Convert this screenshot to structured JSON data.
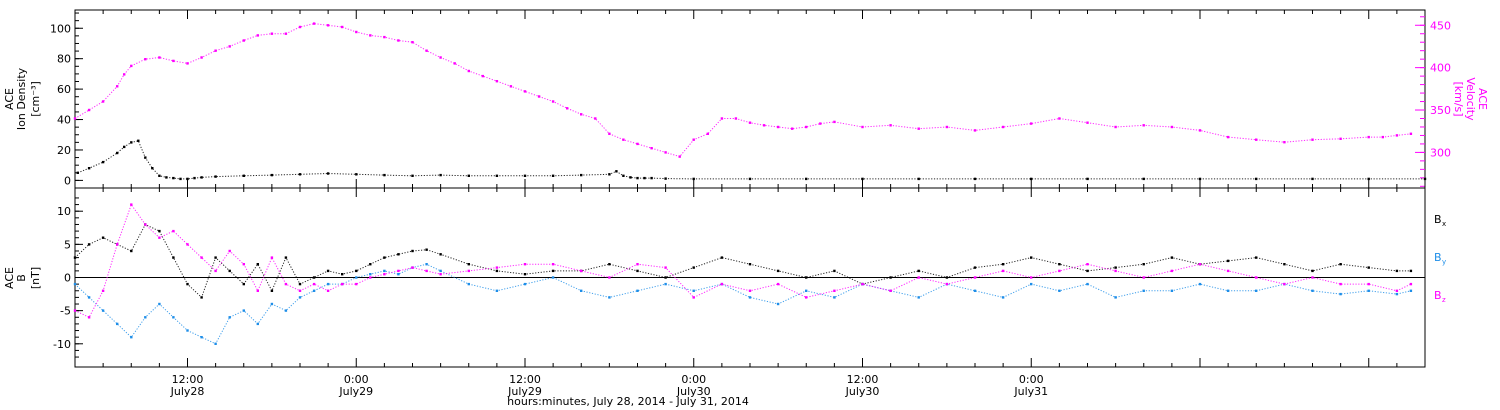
{
  "chart_data": [
    {
      "type": "scatter",
      "panel": "top",
      "ylabel_left": [
        "ACE",
        "Ion Density",
        "[cm⁻³]"
      ],
      "ylabel_right": [
        "ACE",
        "Velocity",
        "[km/s]"
      ],
      "xlim_hours": [
        -20,
        76
      ],
      "ylim_left": [
        -5,
        112
      ],
      "ylim_right": [
        258,
        468
      ],
      "left_ticks": [
        0,
        20,
        40,
        60,
        80,
        100
      ],
      "right_ticks": [
        300,
        350,
        400,
        450
      ],
      "left_color": "#000000",
      "right_color": "#ff00ff",
      "series": [
        {
          "axis": "left",
          "color": "#000000",
          "x": [
            -19.8,
            -19,
            -18,
            -17,
            -16.5,
            -16,
            -15.5,
            -15,
            -14.5,
            -14,
            -13.5,
            -13,
            -12.5,
            -12,
            -11.5,
            -11,
            -10,
            -8,
            -6,
            -4,
            -2,
            0,
            2,
            4,
            6,
            8,
            10,
            12,
            14,
            16,
            18,
            18.5,
            19,
            19.5,
            20,
            20.5,
            21,
            22,
            24,
            28,
            32,
            36,
            40,
            44,
            48,
            52,
            56,
            60,
            64,
            68,
            72,
            76
          ],
          "y": [
            5,
            8,
            12,
            18,
            22,
            25,
            26,
            15,
            8,
            3,
            2,
            1.5,
            1,
            1,
            1.5,
            2,
            2.5,
            3,
            3.5,
            4,
            4.5,
            4,
            3.5,
            3,
            3.5,
            3,
            3,
            3,
            3,
            3.5,
            4,
            6,
            3,
            2,
            1.5,
            1.5,
            1.5,
            1.2,
            1,
            1,
            1,
            1,
            1,
            1,
            1,
            1,
            1,
            1,
            1,
            1,
            1,
            1
          ]
        },
        {
          "axis": "right",
          "color": "#ff00ff",
          "x": [
            -20,
            -19,
            -18,
            -17,
            -16.5,
            -16,
            -15,
            -14,
            -13,
            -12,
            -11,
            -10,
            -9,
            -8,
            -7,
            -6,
            -5,
            -4,
            -3,
            -2,
            -1,
            0,
            1,
            2,
            3,
            4,
            5,
            6,
            7,
            8,
            9,
            10,
            11,
            12,
            13,
            14,
            15,
            16,
            17,
            18,
            19,
            20,
            21,
            22,
            23,
            24,
            25,
            26,
            27,
            28,
            29,
            30,
            31,
            32,
            33,
            34,
            36,
            38,
            40,
            42,
            44,
            46,
            48,
            50,
            52,
            54,
            56,
            58,
            60,
            62,
            64,
            66,
            68,
            70,
            72,
            73,
            74,
            75
          ],
          "y": [
            340,
            350,
            360,
            378,
            392,
            402,
            410,
            412,
            408,
            405,
            412,
            420,
            425,
            432,
            438,
            440,
            440,
            448,
            452,
            450,
            448,
            442,
            438,
            436,
            432,
            430,
            420,
            412,
            405,
            396,
            390,
            384,
            378,
            372,
            366,
            360,
            352,
            345,
            340,
            322,
            315,
            310,
            305,
            300,
            295,
            315,
            322,
            340,
            340,
            335,
            332,
            330,
            328,
            330,
            334,
            336,
            330,
            332,
            328,
            330,
            326,
            330,
            334,
            340,
            335,
            330,
            332,
            330,
            326,
            318,
            315,
            312,
            315,
            316,
            318,
            318,
            320,
            322
          ]
        }
      ]
    },
    {
      "type": "scatter",
      "panel": "bottom",
      "ylabel": [
        "ACE",
        "B",
        "[nT]"
      ],
      "xlim_hours": [
        -20,
        76
      ],
      "ylim": [
        -13.5,
        13.5
      ],
      "ticks": [
        -10,
        -5,
        0,
        5,
        10
      ],
      "zero_line": true,
      "legend_placement": "right",
      "series": [
        {
          "name": "Bx",
          "color": "#000000",
          "x": [
            -20,
            -19,
            -18,
            -17,
            -16,
            -15,
            -14,
            -13,
            -12,
            -11,
            -10,
            -9,
            -8,
            -7,
            -6,
            -5,
            -4,
            -3,
            -2,
            -1,
            0,
            1,
            2,
            3,
            4,
            5,
            6,
            8,
            10,
            12,
            14,
            16,
            18,
            20,
            22,
            24,
            26,
            28,
            30,
            32,
            34,
            36,
            38,
            40,
            42,
            44,
            46,
            48,
            50,
            52,
            54,
            56,
            58,
            60,
            62,
            64,
            66,
            68,
            70,
            72,
            74,
            75
          ],
          "y": [
            3,
            5,
            6,
            5,
            4,
            8,
            7,
            3,
            -1,
            -3,
            3,
            1,
            -1,
            2,
            -2,
            3,
            -1,
            0,
            1,
            0.5,
            1,
            2,
            3,
            3.5,
            4,
            4.2,
            3.5,
            2,
            1,
            0.5,
            1,
            1,
            2,
            1,
            0,
            1.5,
            3,
            2,
            1,
            0,
            1,
            -1,
            0,
            1,
            0,
            1.5,
            2,
            3,
            2,
            1,
            1.5,
            2,
            3,
            2,
            2.5,
            3,
            2,
            1,
            2,
            1.5,
            1,
            1
          ]
        },
        {
          "name": "By",
          "color": "#1e8ee8",
          "x": [
            -20,
            -19,
            -18,
            -17,
            -16,
            -15,
            -14,
            -13,
            -12,
            -11,
            -10,
            -9,
            -8,
            -7,
            -6,
            -5,
            -4,
            -3,
            -2,
            -1,
            0,
            1,
            2,
            3,
            4,
            5,
            6,
            8,
            10,
            12,
            14,
            16,
            18,
            20,
            22,
            24,
            26,
            28,
            30,
            32,
            34,
            36,
            38,
            40,
            42,
            44,
            46,
            48,
            50,
            52,
            54,
            56,
            58,
            60,
            62,
            64,
            66,
            68,
            70,
            72,
            74,
            75
          ],
          "y": [
            -1,
            -3,
            -5,
            -7,
            -9,
            -6,
            -4,
            -6,
            -8,
            -9,
            -10,
            -6,
            -5,
            -7,
            -4,
            -5,
            -3,
            -2,
            -1,
            -1,
            0,
            0.5,
            1,
            0.5,
            1.5,
            2,
            1,
            -1,
            -2,
            -1,
            0,
            -2,
            -3,
            -2,
            -1,
            -2,
            -1,
            -3,
            -4,
            -2,
            -3,
            -1,
            -2,
            -3,
            -1,
            -2,
            -3,
            -1,
            -2,
            -1,
            -3,
            -2,
            -2,
            -1,
            -2,
            -2,
            -1,
            -2,
            -2.5,
            -2,
            -2.5,
            -2
          ]
        },
        {
          "name": "Bz",
          "color": "#ff00ff",
          "x": [
            -20,
            -19,
            -18,
            -17,
            -16,
            -15,
            -14,
            -13,
            -12,
            -11,
            -10,
            -9,
            -8,
            -7,
            -6,
            -5,
            -4,
            -3,
            -2,
            -1,
            0,
            1,
            2,
            3,
            4,
            5,
            6,
            8,
            10,
            12,
            14,
            16,
            18,
            20,
            22,
            24,
            26,
            28,
            30,
            32,
            34,
            36,
            38,
            40,
            42,
            44,
            46,
            48,
            50,
            52,
            54,
            56,
            58,
            60,
            62,
            64,
            66,
            68,
            70,
            72,
            74,
            75
          ],
          "y": [
            -5,
            -6,
            -2,
            5,
            11,
            8,
            6,
            7,
            5,
            3,
            1,
            4,
            2,
            -2,
            3,
            -1,
            -2,
            -1,
            -2,
            -1,
            -1,
            0,
            0.5,
            1,
            1.5,
            1,
            0.5,
            1,
            1.5,
            2,
            2,
            1,
            0,
            2,
            1.5,
            -3,
            -1,
            -2,
            -1,
            -3,
            -2,
            -1,
            -2,
            0,
            -1,
            0,
            1,
            0,
            1,
            2,
            1,
            0,
            1,
            2,
            1,
            0,
            -1,
            0,
            -1,
            -1,
            -2,
            -1
          ]
        }
      ]
    }
  ],
  "legend": {
    "bx_base": "B",
    "bx_sub": "x",
    "by_base": "B",
    "by_sub": "y",
    "bz_base": "B",
    "bz_sub": "z"
  },
  "time_axis": {
    "ticks": [
      {
        "hours": -12,
        "time": "12:00",
        "date": "July28"
      },
      {
        "hours": 0,
        "time": "0:00",
        "date": "July29"
      },
      {
        "hours": 12,
        "time": "12:00",
        "date": "July29"
      },
      {
        "hours": 24,
        "time": "0:00",
        "date": "July30"
      },
      {
        "hours": 36,
        "time": "12:00",
        "date": "July30"
      },
      {
        "hours": 48,
        "time": "0:00",
        "date": "July31"
      }
    ],
    "title": "hours:minutes, July 28, 2014 - July 31, 2014"
  }
}
